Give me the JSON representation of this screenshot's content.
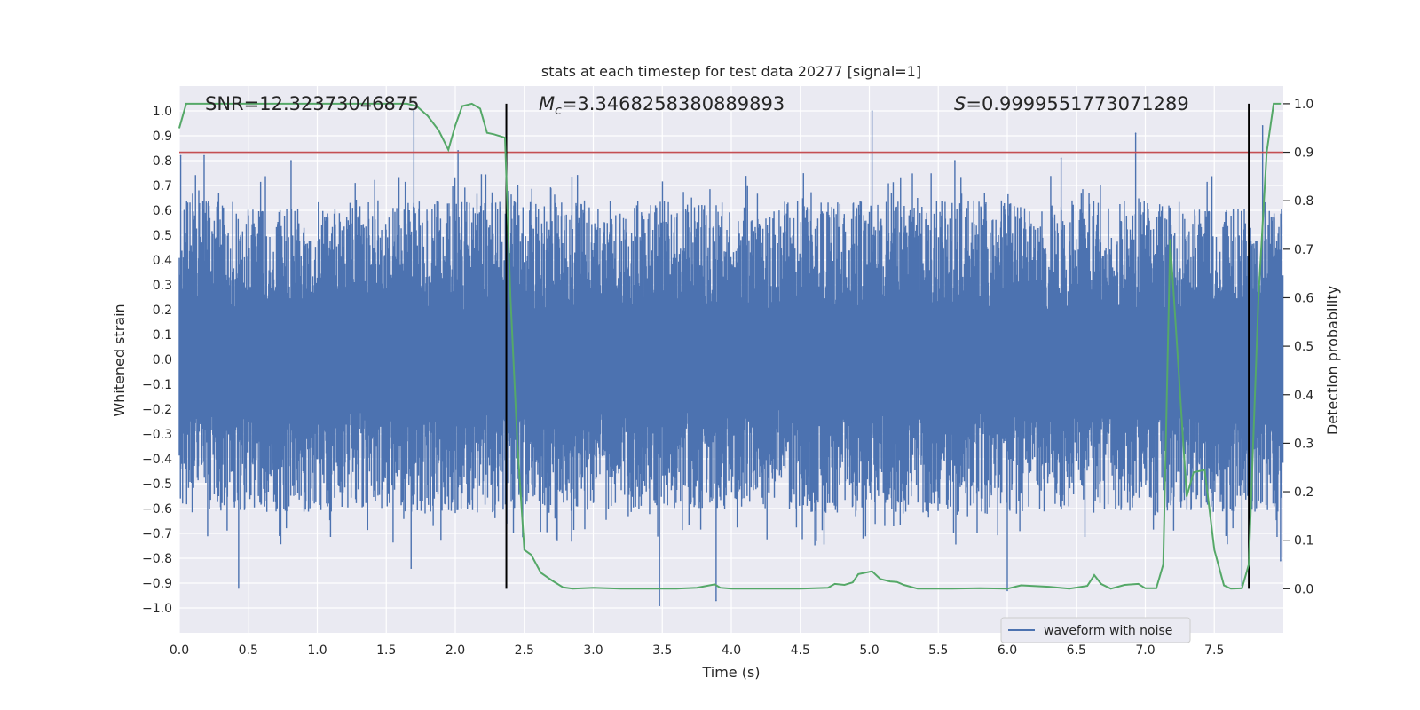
{
  "chart_data": {
    "type": "line",
    "title": "stats at each timestep for test data 20277 [signal=1]",
    "xlabel": "Time (s)",
    "ylabel_left": "Whitened strain",
    "ylabel_right": "Detection probability",
    "xlim": [
      0.0,
      8.0
    ],
    "ylim_left": [
      -1.1,
      1.1
    ],
    "ylim_right": [
      -0.0909,
      1.0364
    ],
    "grid": true,
    "legend_position": "lower-right",
    "x_ticks": [
      "0.0",
      "0.5",
      "1.0",
      "1.5",
      "2.0",
      "2.5",
      "3.0",
      "3.5",
      "4.0",
      "4.5",
      "5.0",
      "5.5",
      "6.0",
      "6.5",
      "7.0",
      "7.5"
    ],
    "x_tick_values": [
      0.0,
      0.5,
      1.0,
      1.5,
      2.0,
      2.5,
      3.0,
      3.5,
      4.0,
      4.5,
      5.0,
      5.5,
      6.0,
      6.5,
      7.0,
      7.5
    ],
    "y_left_ticks": [
      "1.0",
      "0.9",
      "0.8",
      "0.7",
      "0.6",
      "0.5",
      "0.4",
      "0.3",
      "0.2",
      "0.1",
      "0.0",
      "−0.1",
      "−0.2",
      "−0.3",
      "−0.4",
      "−0.5",
      "−0.6",
      "−0.7",
      "−0.8",
      "−0.9",
      "−1.0"
    ],
    "y_left_tick_values": [
      1.0,
      0.9,
      0.8,
      0.7,
      0.6,
      0.5,
      0.4,
      0.3,
      0.2,
      0.1,
      0.0,
      -0.1,
      -0.2,
      -0.3,
      -0.4,
      -0.5,
      -0.6,
      -0.7,
      -0.8,
      -0.9,
      -1.0
    ],
    "y_right_ticks": [
      "1.0",
      "0.9",
      "0.8",
      "0.7",
      "0.6",
      "0.5",
      "0.4",
      "0.3",
      "0.2",
      "0.1",
      "0.0"
    ],
    "y_right_tick_values": [
      1.0,
      0.9,
      0.8,
      0.7,
      0.6,
      0.5,
      0.4,
      0.3,
      0.2,
      0.1,
      0.0
    ],
    "annotations": [
      {
        "id": "snr",
        "text": "SNR=12.32373046875"
      },
      {
        "id": "mc",
        "prefix": "M",
        "subscript": "c",
        "text": "=3.3468258380889893"
      },
      {
        "id": "s",
        "prefix": "S",
        "text": "=0.9999551773071289"
      }
    ],
    "threshold": {
      "value": 0.9,
      "axis": "right",
      "color": "#c44e52"
    },
    "vertical_lines": [
      {
        "x": 2.37
      },
      {
        "x": 7.75
      }
    ],
    "waveform": {
      "name": "waveform with noise",
      "color": "#4c72b0",
      "samples": 3000,
      "core_band": [
        -0.2,
        0.2
      ],
      "typical_range": [
        -0.62,
        0.64
      ],
      "peaks": [
        {
          "x": 0.01,
          "y": 0.82
        },
        {
          "x": 0.18,
          "y": 0.82
        },
        {
          "x": 0.43,
          "y": -0.92
        },
        {
          "x": 0.81,
          "y": 0.8
        },
        {
          "x": 1.7,
          "y": 1.0
        },
        {
          "x": 1.68,
          "y": -0.84
        },
        {
          "x": 2.02,
          "y": 0.84
        },
        {
          "x": 2.37,
          "y": 0.9
        },
        {
          "x": 3.48,
          "y": -0.99
        },
        {
          "x": 3.89,
          "y": -0.97
        },
        {
          "x": 5.02,
          "y": 1.0
        },
        {
          "x": 5.62,
          "y": 0.8
        },
        {
          "x": 6.0,
          "y": -0.93
        },
        {
          "x": 6.39,
          "y": 0.81
        },
        {
          "x": 6.93,
          "y": 0.91
        },
        {
          "x": 7.85,
          "y": 0.94
        },
        {
          "x": 7.7,
          "y": -0.91
        },
        {
          "x": 7.98,
          "y": -0.81
        }
      ]
    },
    "probability": {
      "name": "detection probability",
      "color": "#55a868",
      "x": [
        0.0,
        0.05,
        0.1,
        0.3,
        0.6,
        0.9,
        1.2,
        1.45,
        1.65,
        1.72,
        1.8,
        1.88,
        1.95,
        2.0,
        2.05,
        2.12,
        2.18,
        2.23,
        2.28,
        2.36,
        2.4,
        2.45,
        2.5,
        2.55,
        2.62,
        2.7,
        2.78,
        2.85,
        3.0,
        3.2,
        3.4,
        3.6,
        3.75,
        3.88,
        3.92,
        4.0,
        4.2,
        4.5,
        4.7,
        4.75,
        4.82,
        4.88,
        4.92,
        5.02,
        5.08,
        5.15,
        5.2,
        5.25,
        5.35,
        5.6,
        5.8,
        6.0,
        6.1,
        6.3,
        6.45,
        6.58,
        6.63,
        6.68,
        6.75,
        6.85,
        6.95,
        7.0,
        7.08,
        7.13,
        7.18,
        7.23,
        7.3,
        7.35,
        7.43,
        7.5,
        7.57,
        7.62,
        7.7,
        7.75,
        7.82,
        7.88,
        7.93,
        7.98
      ],
      "y": [
        0.95,
        1.0,
        1.0,
        1.0,
        1.0,
        1.0,
        1.0,
        1.0,
        1.0,
        0.995,
        0.975,
        0.945,
        0.905,
        0.955,
        0.995,
        1.0,
        0.99,
        0.94,
        0.937,
        0.93,
        0.6,
        0.3,
        0.08,
        0.07,
        0.033,
        0.017,
        0.003,
        0.0,
        0.002,
        0.0,
        0.0,
        0.0,
        0.002,
        0.009,
        0.002,
        0.0,
        0.0,
        0.0,
        0.002,
        0.01,
        0.008,
        0.013,
        0.03,
        0.036,
        0.02,
        0.015,
        0.014,
        0.008,
        0.0,
        0.0,
        0.001,
        0.0,
        0.007,
        0.004,
        0.0,
        0.006,
        0.028,
        0.01,
        0.0,
        0.008,
        0.01,
        0.001,
        0.001,
        0.05,
        0.72,
        0.5,
        0.19,
        0.24,
        0.245,
        0.08,
        0.007,
        0.0,
        0.001,
        0.05,
        0.6,
        0.9,
        1.0,
        1.0
      ]
    }
  }
}
